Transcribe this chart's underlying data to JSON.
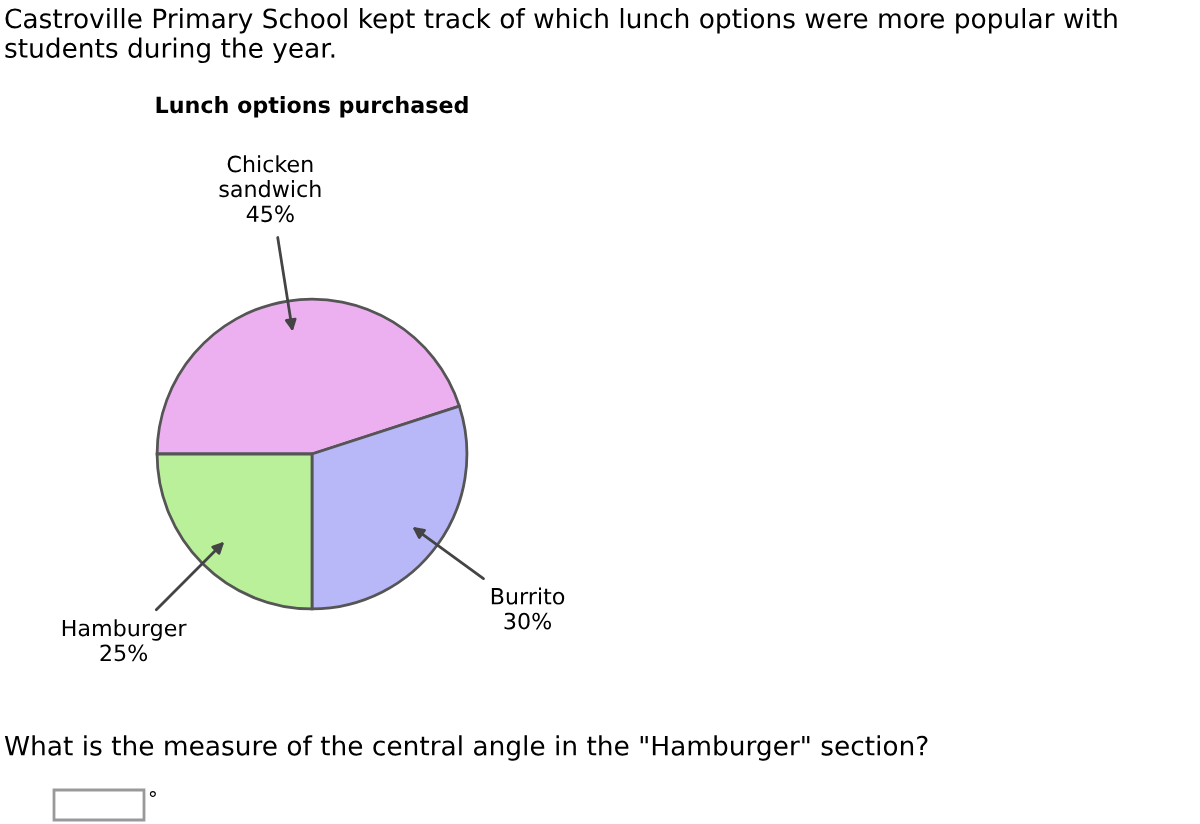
{
  "chart_data": {
    "type": "pie",
    "title": "Castroville Primary School kept track of which lunch options were more popular with students during the year.",
    "subtitle": "Lunch options purchased",
    "categories": [
      "Chicken sandwich",
      "Burrito",
      "Hamburger"
    ],
    "values": [
      45,
      30,
      25
    ],
    "value_labels": [
      "45%",
      "30%",
      "25%"
    ],
    "colors": [
      "#ecb0f0",
      "#b8b8f8",
      "#bbf09a"
    ],
    "annotations": [
      "What is the measure of the central angle in the \"Hamburger\" section?",
      "°"
    ]
  }
}
